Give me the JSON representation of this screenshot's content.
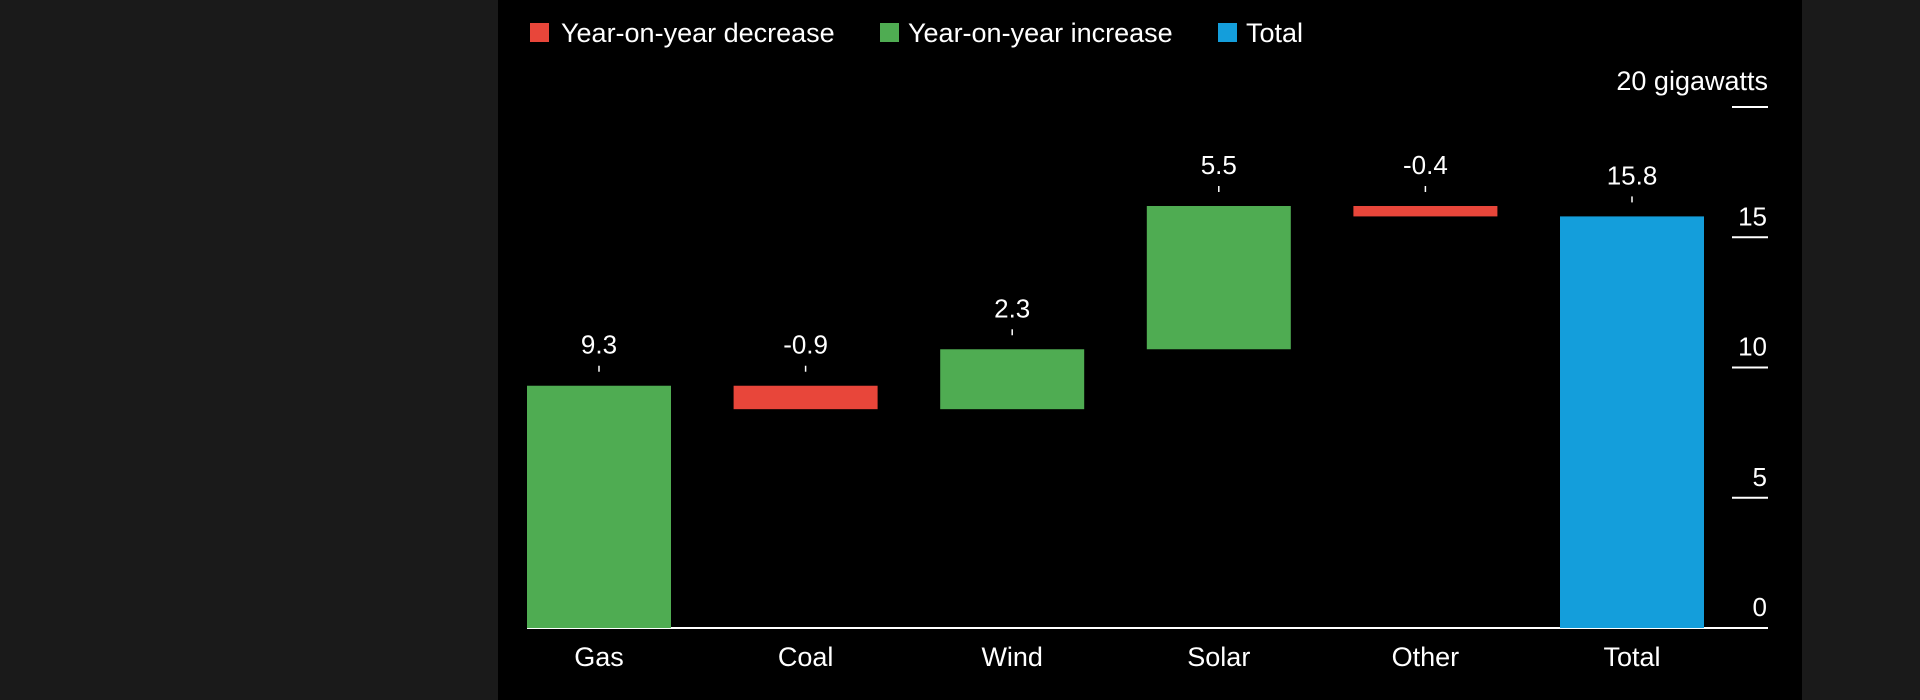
{
  "chart_data": {
    "type": "waterfall",
    "categories": [
      "Gas",
      "Coal",
      "Wind",
      "Solar",
      "Other",
      "Total"
    ],
    "values": [
      9.3,
      -0.9,
      2.3,
      5.5,
      -0.4,
      15.8
    ],
    "value_labels": [
      "9.3",
      "-0.9",
      "2.3",
      "5.5",
      "-0.4",
      "15.8"
    ],
    "kinds": [
      "increase",
      "decrease",
      "increase",
      "increase",
      "decrease",
      "total"
    ],
    "unit_label": "20 gigawatts",
    "y_ticks": [
      0,
      5,
      10,
      15,
      20
    ],
    "y_tick_labels": [
      "0",
      "5",
      "10",
      "15",
      ""
    ],
    "ylim": [
      0,
      20
    ],
    "y_axis_side": "right",
    "legend_position": "top-left",
    "legend": [
      {
        "key": "decrease",
        "label": "Year-on-year decrease",
        "color": "#e8463a"
      },
      {
        "key": "increase",
        "label": "Year-on-year increase",
        "color": "#4fac52"
      },
      {
        "key": "total",
        "label": "Total",
        "color": "#149edb"
      }
    ],
    "colors": {
      "increase": "#4fac52",
      "decrease": "#e8463a",
      "total": "#149edb",
      "background": "#000000",
      "text": "#ffffff"
    }
  }
}
